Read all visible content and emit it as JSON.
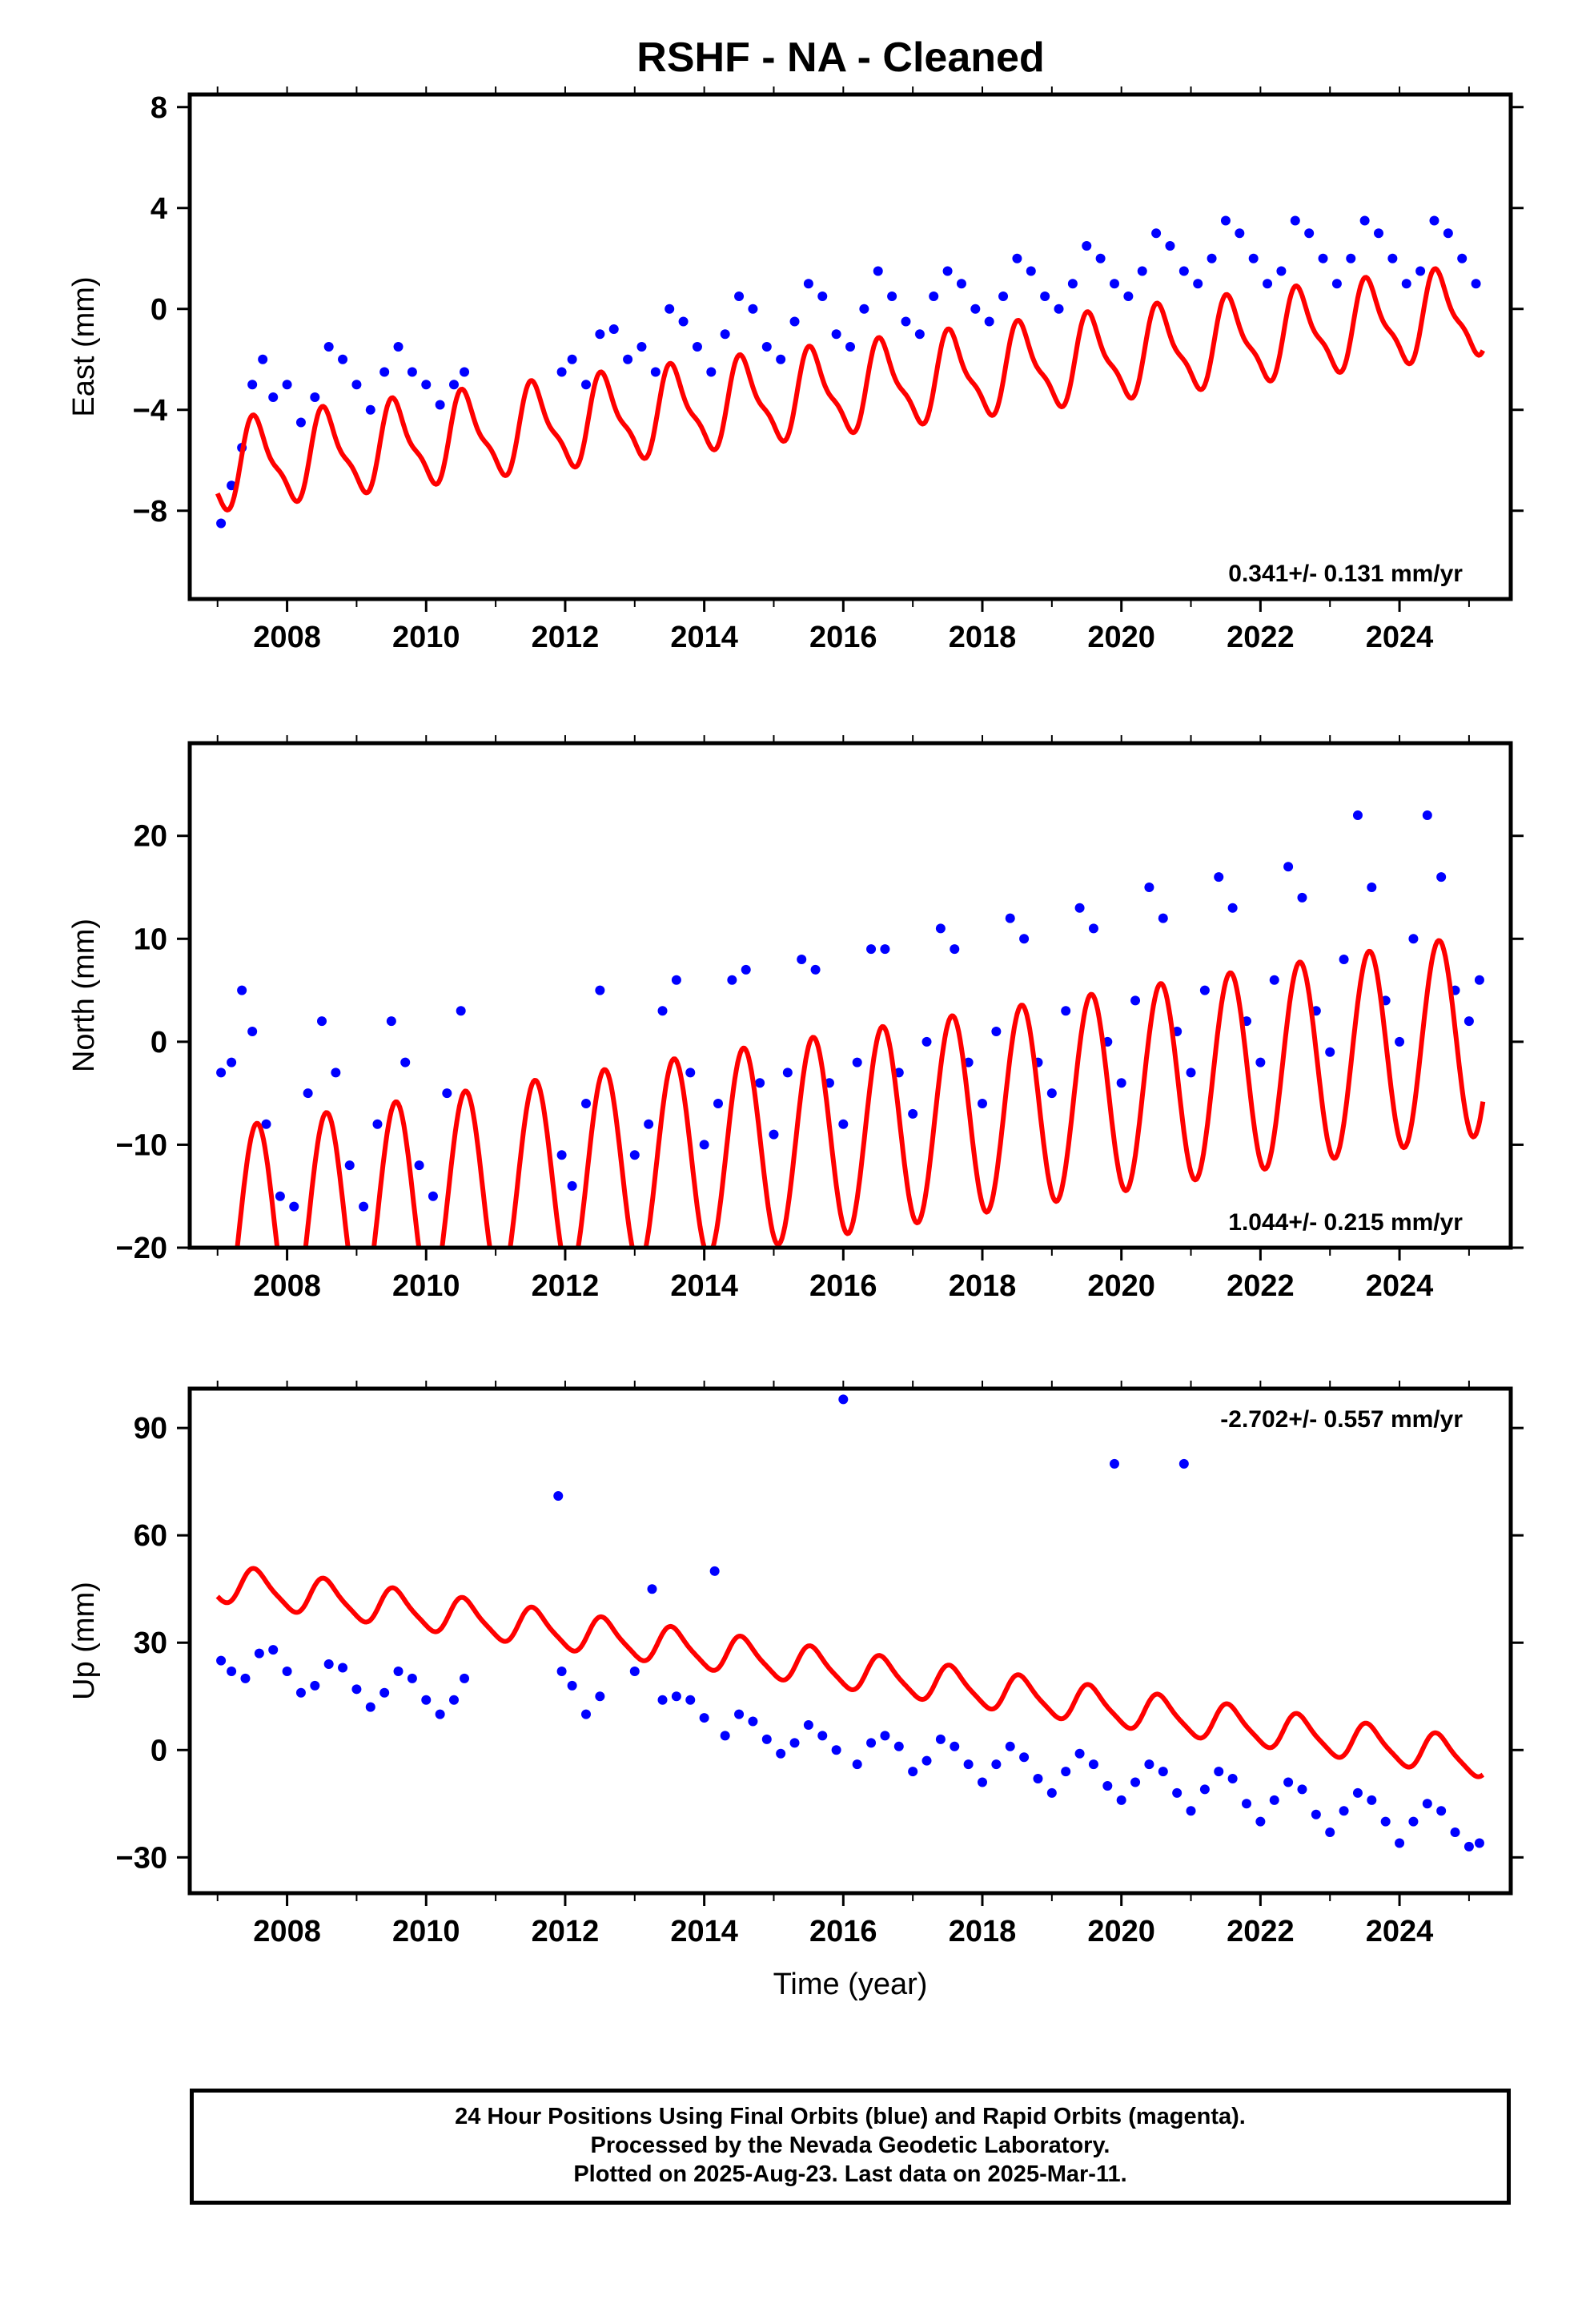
{
  "title": "RSHF  - NA - Cleaned",
  "colors": {
    "data": "#0000ff",
    "model": "#ff0000",
    "frame": "#000000"
  },
  "footer": {
    "line1": "24 Hour Positions Using Final Orbits (blue) and Rapid Orbits (magenta).",
    "line2": "Processed by the Nevada Geodetic Laboratory.",
    "line3": "Plotted on 2025-Aug-23. Last data on 2025-Mar-11."
  },
  "chart_data": [
    {
      "type": "scatter",
      "ylabel": "East (mm)",
      "xlabel": "",
      "xlim": [
        2006.6,
        2025.6
      ],
      "ylim": [
        -11.5,
        8.5
      ],
      "yticks": [
        -8,
        -4,
        0,
        4,
        8
      ],
      "ytick_labels": [
        "−8",
        "−4",
        "0",
        "4",
        "8"
      ],
      "xticks": [
        2008,
        2010,
        2012,
        2014,
        2016,
        2018,
        2020,
        2022,
        2024
      ],
      "xtick_labels": [
        "2008",
        "2010",
        "2012",
        "2014",
        "2016",
        "2018",
        "2020",
        "2022",
        "2024"
      ],
      "rate": "0.341+/- 0.131 mm/yr",
      "rate_position": "bottom-right",
      "series": [
        {
          "style": "points",
          "color": "#0000ff",
          "x": [
            2007.05,
            2007.2,
            2007.35,
            2007.5,
            2007.65,
            2007.8,
            2008.0,
            2008.2,
            2008.4,
            2008.6,
            2008.8,
            2009.0,
            2009.2,
            2009.4,
            2009.6,
            2009.8,
            2010.0,
            2010.2,
            2010.4,
            2010.55,
            2011.95,
            2012.1,
            2012.3,
            2012.5,
            2012.7,
            2012.9,
            2013.1,
            2013.3,
            2013.5,
            2013.7,
            2013.9,
            2014.1,
            2014.3,
            2014.5,
            2014.7,
            2014.9,
            2015.1,
            2015.3,
            2015.5,
            2015.7,
            2015.9,
            2016.1,
            2016.3,
            2016.5,
            2016.7,
            2016.9,
            2017.1,
            2017.3,
            2017.5,
            2017.7,
            2017.9,
            2018.1,
            2018.3,
            2018.5,
            2018.7,
            2018.9,
            2019.1,
            2019.3,
            2019.5,
            2019.7,
            2019.9,
            2020.1,
            2020.3,
            2020.5,
            2020.7,
            2020.9,
            2021.1,
            2021.3,
            2021.5,
            2021.7,
            2021.9,
            2022.1,
            2022.3,
            2022.5,
            2022.7,
            2022.9,
            2023.1,
            2023.3,
            2023.5,
            2023.7,
            2023.9,
            2024.1,
            2024.3,
            2024.5,
            2024.7,
            2024.9,
            2025.1
          ],
          "y": [
            -8.5,
            -7.0,
            -5.5,
            -3.0,
            -2.0,
            -3.5,
            -3.0,
            -4.5,
            -3.5,
            -1.5,
            -2.0,
            -3.0,
            -4.0,
            -2.5,
            -1.5,
            -2.5,
            -3.0,
            -3.8,
            -3.0,
            -2.5,
            -2.5,
            -2.0,
            -3.0,
            -1.0,
            -0.8,
            -2.0,
            -1.5,
            -2.5,
            0.0,
            -0.5,
            -1.5,
            -2.5,
            -1.0,
            0.5,
            0.0,
            -1.5,
            -2.0,
            -0.5,
            1.0,
            0.5,
            -1.0,
            -1.5,
            0.0,
            1.5,
            0.5,
            -0.5,
            -1.0,
            0.5,
            1.5,
            1.0,
            0.0,
            -0.5,
            0.5,
            2.0,
            1.5,
            0.5,
            0.0,
            1.0,
            2.5,
            2.0,
            1.0,
            0.5,
            1.5,
            3.0,
            2.5,
            1.5,
            1.0,
            2.0,
            3.5,
            3.0,
            2.0,
            1.0,
            1.5,
            3.5,
            3.0,
            2.0,
            1.0,
            2.0,
            3.5,
            3.0,
            2.0,
            1.0,
            1.5,
            3.5,
            3.0,
            2.0,
            1.0
          ]
        },
        {
          "style": "line",
          "color": "#ff0000",
          "fit": {
            "x0": 2007.0,
            "x1": 2025.2,
            "offset": -3.2,
            "rate": 0.341,
            "amp_annual": 1.6,
            "phase_annual": 4.3,
            "amp_semi": 0.5,
            "phase_semi": 2.0
          }
        }
      ]
    },
    {
      "type": "scatter",
      "ylabel": "North (mm)",
      "xlabel": "",
      "xlim": [
        2006.6,
        2025.6
      ],
      "ylim": [
        -20,
        29
      ],
      "yticks": [
        -20,
        -10,
        0,
        10,
        20
      ],
      "ytick_labels": [
        "−20",
        "−10",
        "0",
        "10",
        "20"
      ],
      "xticks": [
        2008,
        2010,
        2012,
        2014,
        2016,
        2018,
        2020,
        2022,
        2024
      ],
      "xtick_labels": [
        "2008",
        "2010",
        "2012",
        "2014",
        "2016",
        "2018",
        "2020",
        "2022",
        "2024"
      ],
      "rate": "1.044+/- 0.215 mm/yr",
      "rate_position": "bottom-right",
      "series": [
        {
          "style": "points",
          "color": "#0000ff",
          "x": [
            2007.05,
            2007.2,
            2007.35,
            2007.5,
            2007.7,
            2007.9,
            2008.1,
            2008.3,
            2008.5,
            2008.7,
            2008.9,
            2009.1,
            2009.3,
            2009.5,
            2009.7,
            2009.9,
            2010.1,
            2010.3,
            2010.5,
            2011.95,
            2012.1,
            2012.3,
            2012.5,
            2013.0,
            2013.2,
            2013.4,
            2013.6,
            2013.8,
            2014.0,
            2014.2,
            2014.4,
            2014.6,
            2014.8,
            2015.0,
            2015.2,
            2015.4,
            2015.6,
            2015.8,
            2016.0,
            2016.2,
            2016.4,
            2016.6,
            2016.8,
            2017.0,
            2017.2,
            2017.4,
            2017.6,
            2017.8,
            2018.0,
            2018.2,
            2018.4,
            2018.6,
            2018.8,
            2019.0,
            2019.2,
            2019.4,
            2019.6,
            2019.8,
            2020.0,
            2020.2,
            2020.4,
            2020.6,
            2020.8,
            2021.0,
            2021.2,
            2021.4,
            2021.6,
            2021.8,
            2022.0,
            2022.2,
            2022.4,
            2022.6,
            2022.8,
            2023.0,
            2023.2,
            2023.4,
            2023.6,
            2023.8,
            2024.0,
            2024.2,
            2024.4,
            2024.6,
            2024.8,
            2025.0,
            2025.15
          ],
          "y": [
            -3.0,
            -2.0,
            5.0,
            1.0,
            -8.0,
            -15.0,
            -16.0,
            -5.0,
            2.0,
            -3.0,
            -12.0,
            -16.0,
            -8.0,
            2.0,
            -2.0,
            -12.0,
            -15.0,
            -5.0,
            3.0,
            -11.0,
            -14.0,
            -6.0,
            5.0,
            -11.0,
            -8.0,
            3.0,
            6.0,
            -3.0,
            -10.0,
            -6.0,
            6.0,
            7.0,
            -4.0,
            -9.0,
            -3.0,
            8.0,
            7.0,
            -4.0,
            -8.0,
            -2.0,
            9.0,
            9.0,
            -3.0,
            -7.0,
            0.0,
            11.0,
            9.0,
            -2.0,
            -6.0,
            1.0,
            12.0,
            10.0,
            -2.0,
            -5.0,
            3.0,
            13.0,
            11.0,
            0.0,
            -4.0,
            4.0,
            15.0,
            12.0,
            1.0,
            -3.0,
            5.0,
            16.0,
            13.0,
            2.0,
            -2.0,
            6.0,
            17.0,
            14.0,
            3.0,
            -1.0,
            8.0,
            22.0,
            15.0,
            4.0,
            0.0,
            10.0,
            22.0,
            16.0,
            5.0,
            2.0,
            6.0
          ]
        },
        {
          "style": "line",
          "color": "#ff0000",
          "fit": {
            "x0": 2007.0,
            "x1": 2025.2,
            "offset": -8.8,
            "rate": 1.044,
            "amp_annual": 9.8,
            "phase_annual": 4.3,
            "amp_semi": 0.0,
            "phase_semi": 0.0
          }
        }
      ]
    },
    {
      "type": "scatter",
      "ylabel": "Up (mm)",
      "xlabel": "Time (year)",
      "xlim": [
        2006.6,
        2025.6
      ],
      "ylim": [
        -40,
        101
      ],
      "yticks": [
        -30,
        0,
        30,
        60,
        90
      ],
      "ytick_labels": [
        "−30",
        "0",
        "30",
        "60",
        "90"
      ],
      "xticks": [
        2008,
        2010,
        2012,
        2014,
        2016,
        2018,
        2020,
        2022,
        2024
      ],
      "xtick_labels": [
        "2008",
        "2010",
        "2012",
        "2014",
        "2016",
        "2018",
        "2020",
        "2022",
        "2024"
      ],
      "rate": "-2.702+/- 0.557 mm/yr",
      "rate_position": "top-right",
      "series": [
        {
          "style": "points",
          "color": "#0000ff",
          "x": [
            2007.05,
            2007.2,
            2007.4,
            2007.6,
            2007.8,
            2008.0,
            2008.2,
            2008.4,
            2008.6,
            2008.8,
            2009.0,
            2009.2,
            2009.4,
            2009.6,
            2009.8,
            2010.0,
            2010.2,
            2010.4,
            2010.55,
            2011.9,
            2011.95,
            2012.1,
            2012.3,
            2012.5,
            2013.0,
            2013.25,
            2013.4,
            2013.6,
            2013.8,
            2014.0,
            2014.15,
            2014.3,
            2014.5,
            2014.7,
            2014.9,
            2015.1,
            2015.3,
            2015.5,
            2015.7,
            2015.9,
            2016.0,
            2016.2,
            2016.4,
            2016.6,
            2016.8,
            2017.0,
            2017.2,
            2017.4,
            2017.6,
            2017.8,
            2018.0,
            2018.2,
            2018.4,
            2018.6,
            2018.8,
            2019.0,
            2019.2,
            2019.4,
            2019.6,
            2019.8,
            2019.9,
            2020.0,
            2020.2,
            2020.4,
            2020.6,
            2020.8,
            2020.9,
            2021.0,
            2021.2,
            2021.4,
            2021.6,
            2021.8,
            2022.0,
            2022.2,
            2022.4,
            2022.6,
            2022.8,
            2023.0,
            2023.2,
            2023.4,
            2023.6,
            2023.8,
            2024.0,
            2024.2,
            2024.4,
            2024.6,
            2024.8,
            2025.0,
            2025.15
          ],
          "y": [
            25.0,
            22.0,
            20.0,
            27.0,
            28.0,
            22.0,
            16.0,
            18.0,
            24.0,
            23.0,
            17.0,
            12.0,
            16.0,
            22.0,
            20.0,
            14.0,
            10.0,
            14.0,
            20.0,
            71.0,
            22.0,
            18.0,
            10.0,
            15.0,
            22.0,
            45.0,
            14.0,
            15.0,
            14.0,
            9.0,
            50.0,
            4.0,
            10.0,
            8.0,
            3.0,
            -1.0,
            2.0,
            7.0,
            4.0,
            0.0,
            98.0,
            -4.0,
            2.0,
            4.0,
            1.0,
            -6.0,
            -3.0,
            3.0,
            1.0,
            -4.0,
            -9.0,
            -4.0,
            1.0,
            -2.0,
            -8.0,
            -12.0,
            -6.0,
            -1.0,
            -4.0,
            -10.0,
            80.0,
            -14.0,
            -9.0,
            -4.0,
            -6.0,
            -12.0,
            80.0,
            -17.0,
            -11.0,
            -6.0,
            -8.0,
            -15.0,
            -20.0,
            -14.0,
            -9.0,
            -11.0,
            -18.0,
            -23.0,
            -17.0,
            -12.0,
            -14.0,
            -20.0,
            -26.0,
            -20.0,
            -15.0,
            -17.0,
            -23.0,
            -27.0,
            -26.0
          ]
        },
        {
          "style": "line",
          "color": "#ff0000",
          "fit": {
            "x0": 2007.0,
            "x1": 2025.2,
            "offset": 22.0,
            "rate": -2.702,
            "amp_annual": 5.0,
            "phase_annual": 4.3,
            "amp_semi": 1.0,
            "phase_semi": 2.0
          }
        }
      ]
    }
  ]
}
